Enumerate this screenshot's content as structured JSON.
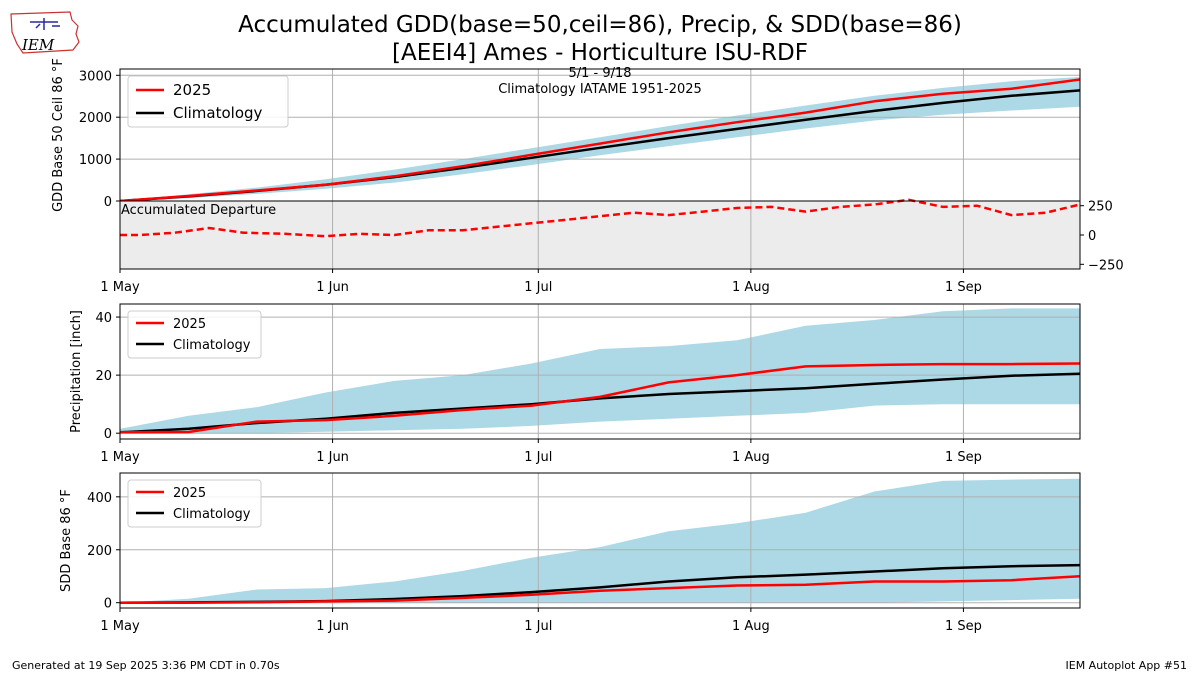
{
  "page": {
    "title_line1": "Accumulated GDD(base=50,ceil=86), Precip, & SDD(base=86)",
    "title_line2": "[AEEI4] Ames - Horticulture ISU-RDF",
    "date_range": "5/1 - 9/18",
    "climatology_label": "Climatology IATAME 1951-2025",
    "logo_text": "IEM",
    "footer_left": "Generated at 19 Sep 2025 3:36 PM CDT in 0.70s",
    "footer_right": "IEM Autoplot App #51"
  },
  "colors": {
    "observed": "#ff0000",
    "climatology": "#000000",
    "range_fill": "#add8e6",
    "departure_bg": "#ececec",
    "grid": "#b0b0b0"
  },
  "chart_data": [
    {
      "id": "gdd",
      "type": "line",
      "ylabel": "GDD Base 50 Ceil 86 °F",
      "xlim": [
        0,
        140
      ],
      "ylim": [
        0,
        3150
      ],
      "yticks": [
        0,
        1000,
        2000,
        3000
      ],
      "ytick_labels": [
        "0",
        "1000",
        "2000",
        "3000"
      ],
      "legend": {
        "position": "upper-left",
        "entries": [
          "2025",
          "Climatology"
        ]
      },
      "x": [
        0,
        10,
        20,
        30,
        40,
        50,
        60,
        70,
        80,
        90,
        100,
        110,
        120,
        130,
        140
      ],
      "series": [
        {
          "name": "2025",
          "style": "observed",
          "values": [
            0,
            120,
            250,
            390,
            590,
            830,
            1100,
            1370,
            1640,
            1880,
            2110,
            2380,
            2560,
            2680,
            2900
          ]
        },
        {
          "name": "Climatology",
          "style": "climatology",
          "values": [
            0,
            110,
            240,
            390,
            570,
            790,
            1030,
            1270,
            1500,
            1720,
            1940,
            2150,
            2340,
            2510,
            2640
          ]
        }
      ],
      "range": {
        "upper": [
          0,
          160,
          320,
          520,
          750,
          1000,
          1260,
          1520,
          1790,
          2040,
          2280,
          2510,
          2700,
          2860,
          2960
        ],
        "lower": [
          0,
          70,
          170,
          290,
          440,
          640,
          860,
          1090,
          1310,
          1520,
          1730,
          1920,
          2060,
          2160,
          2250
        ]
      }
    },
    {
      "id": "departure",
      "type": "line",
      "label": "Accumulated Departure",
      "xlim": [
        0,
        140
      ],
      "ylim": [
        -290,
        290
      ],
      "yticks": [
        250,
        0,
        -250
      ],
      "ytick_labels": [
        "250",
        "0",
        "−250"
      ],
      "x": [
        0,
        3,
        8,
        13,
        18,
        24,
        30,
        35,
        40,
        45,
        50,
        55,
        60,
        65,
        70,
        75,
        80,
        85,
        90,
        95,
        100,
        105,
        110,
        115,
        120,
        125,
        130,
        135,
        140
      ],
      "values": [
        0,
        0,
        20,
        60,
        20,
        10,
        -10,
        10,
        0,
        40,
        40,
        70,
        100,
        130,
        160,
        190,
        170,
        200,
        230,
        240,
        200,
        240,
        260,
        300,
        240,
        250,
        170,
        190,
        260
      ]
    },
    {
      "id": "precip",
      "type": "line",
      "ylabel": "Precipitation [inch]",
      "xlim": [
        0,
        140
      ],
      "ylim": [
        -2,
        44.5
      ],
      "yticks": [
        0,
        20,
        40
      ],
      "ytick_labels": [
        "0",
        "20",
        "40"
      ],
      "legend": {
        "position": "upper-left",
        "entries": [
          "2025",
          "Climatology"
        ]
      },
      "x": [
        0,
        10,
        20,
        30,
        40,
        50,
        60,
        70,
        80,
        90,
        100,
        110,
        120,
        130,
        140
      ],
      "series": [
        {
          "name": "2025",
          "style": "observed",
          "values": [
            0.3,
            0.4,
            4,
            4.5,
            6,
            8,
            9.5,
            12.5,
            17.5,
            20,
            23,
            23.5,
            23.8,
            23.8,
            24
          ]
        },
        {
          "name": "Climatology",
          "style": "climatology",
          "values": [
            0.3,
            1.5,
            3.5,
            5,
            7,
            8.5,
            10,
            12,
            13.5,
            14.5,
            15.5,
            17,
            18.5,
            19.8,
            20.5
          ]
        }
      ],
      "range": {
        "upper": [
          1.5,
          6,
          9,
          14,
          18,
          20,
          24,
          29,
          30,
          32,
          37,
          39,
          42,
          43,
          43
        ],
        "lower": [
          0,
          0,
          0,
          0.5,
          1,
          1.5,
          2.5,
          4,
          5,
          6,
          7,
          9.5,
          10,
          10,
          10
        ]
      }
    },
    {
      "id": "sdd",
      "type": "line",
      "ylabel": "SDD Base 86 °F",
      "xlim": [
        0,
        140
      ],
      "ylim": [
        -20,
        490
      ],
      "yticks": [
        0,
        200,
        400
      ],
      "ytick_labels": [
        "0",
        "200",
        "400"
      ],
      "legend": {
        "position": "upper-left",
        "entries": [
          "2025",
          "Climatology"
        ]
      },
      "x": [
        0,
        10,
        20,
        30,
        40,
        50,
        60,
        70,
        80,
        90,
        100,
        110,
        120,
        130,
        140
      ],
      "series": [
        {
          "name": "2025",
          "style": "observed",
          "values": [
            0,
            0,
            2,
            5,
            8,
            18,
            30,
            45,
            55,
            65,
            68,
            80,
            80,
            85,
            100
          ]
        },
        {
          "name": "Climatology",
          "style": "climatology",
          "values": [
            0,
            1,
            3,
            6,
            14,
            25,
            40,
            58,
            80,
            96,
            106,
            118,
            130,
            138,
            142
          ]
        }
      ],
      "range": {
        "upper": [
          0,
          15,
          50,
          55,
          80,
          120,
          170,
          210,
          270,
          300,
          340,
          420,
          460,
          465,
          468
        ],
        "lower": [
          0,
          0,
          0,
          0,
          0,
          0,
          0,
          0,
          0,
          0,
          0,
          0,
          5,
          10,
          15
        ]
      }
    }
  ],
  "xaxis": {
    "ticks": [
      0,
      31,
      61,
      92,
      123
    ],
    "labels": [
      "1 May",
      "1 Jun",
      "1 Jul",
      "1 Aug",
      "1 Sep"
    ]
  }
}
